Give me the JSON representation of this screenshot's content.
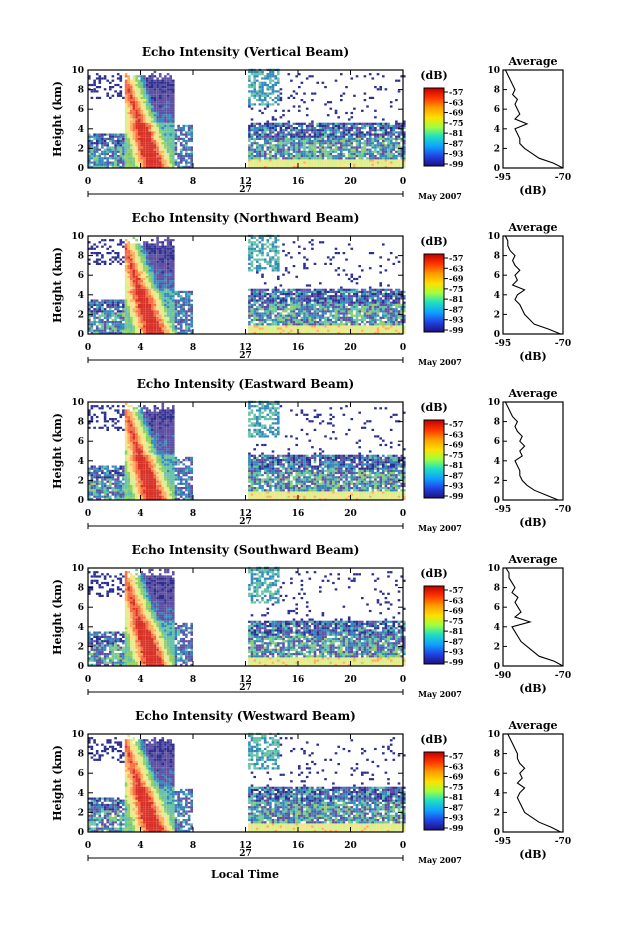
{
  "chart_data": [
    {
      "type": "heatmap",
      "title": "Echo Intensity (Vertical Beam)",
      "ylabel": "Height (km)",
      "ylim": [
        0,
        10
      ],
      "yticks": [
        "0",
        "2",
        "4",
        "6",
        "8",
        "10"
      ],
      "xlim": [
        0,
        24
      ],
      "xticks": [
        "0",
        "4",
        "8",
        "12",
        "16",
        "20",
        "0"
      ],
      "date_label": "27",
      "month_label": "May 2007",
      "gap": [
        8,
        12
      ],
      "colorbar": {
        "unit": "(dB)",
        "labels": [
          "-57",
          "-63",
          "-69",
          "-75",
          "-81",
          "-87",
          "-93",
          "-99"
        ]
      },
      "profile": {
        "title": "Average",
        "xlabel": "(dB)",
        "xtick_labels": [
          "-95",
          "-70"
        ],
        "xlim": [
          -95,
          -70
        ],
        "yticks": [
          "0",
          "2",
          "4",
          "6",
          "8",
          "10"
        ],
        "values": [
          [
            -70,
            0
          ],
          [
            -74,
            0.5
          ],
          [
            -80,
            1
          ],
          [
            -83,
            1.5
          ],
          [
            -86,
            2
          ],
          [
            -88,
            2.5
          ],
          [
            -88,
            3
          ],
          [
            -89,
            3.5
          ],
          [
            -90,
            4
          ],
          [
            -85,
            4.5
          ],
          [
            -90,
            5
          ],
          [
            -88,
            5.5
          ],
          [
            -89,
            6
          ],
          [
            -90,
            6.5
          ],
          [
            -89,
            7
          ],
          [
            -91,
            7.5
          ],
          [
            -90,
            8
          ],
          [
            -91,
            8.5
          ],
          [
            -92,
            9
          ],
          [
            -93,
            9.5
          ],
          [
            -94,
            10
          ]
        ]
      }
    },
    {
      "type": "heatmap",
      "title": "Echo Intensity (Northward Beam)",
      "ylabel": "Height (km)",
      "ylim": [
        0,
        10
      ],
      "yticks": [
        "0",
        "2",
        "4",
        "6",
        "8",
        "10"
      ],
      "xlim": [
        0,
        24
      ],
      "xticks": [
        "0",
        "4",
        "8",
        "12",
        "16",
        "20",
        "0"
      ],
      "date_label": "27",
      "month_label": "May 2007",
      "gap": [
        8,
        12
      ],
      "colorbar": {
        "unit": "(dB)",
        "labels": [
          "-57",
          "-63",
          "-69",
          "-75",
          "-81",
          "-87",
          "-93",
          "-99"
        ]
      },
      "profile": {
        "title": "Average",
        "xlabel": "(dB)",
        "xtick_labels": [
          "-95",
          "-70"
        ],
        "xlim": [
          -95,
          -70
        ],
        "yticks": [
          "0",
          "2",
          "4",
          "6",
          "8",
          "10"
        ],
        "values": [
          [
            -71,
            0
          ],
          [
            -76,
            0.5
          ],
          [
            -82,
            1
          ],
          [
            -84,
            1.5
          ],
          [
            -86,
            2
          ],
          [
            -87,
            2.5
          ],
          [
            -88,
            3
          ],
          [
            -90,
            3.5
          ],
          [
            -89,
            4
          ],
          [
            -86,
            4.5
          ],
          [
            -91,
            5
          ],
          [
            -89,
            5.5
          ],
          [
            -90,
            6
          ],
          [
            -88,
            6.5
          ],
          [
            -90,
            7
          ],
          [
            -91,
            7.5
          ],
          [
            -90,
            8
          ],
          [
            -92,
            8.5
          ],
          [
            -93,
            9
          ],
          [
            -93,
            9.5
          ],
          [
            -94,
            10
          ]
        ]
      }
    },
    {
      "type": "heatmap",
      "title": "Echo Intensity (Eastward Beam)",
      "ylabel": "Height (km)",
      "ylim": [
        0,
        10
      ],
      "yticks": [
        "0",
        "2",
        "4",
        "6",
        "8",
        "10"
      ],
      "xlim": [
        0,
        24
      ],
      "xticks": [
        "0",
        "4",
        "8",
        "12",
        "16",
        "20",
        "0"
      ],
      "date_label": "27",
      "month_label": "May 2007",
      "gap": [
        8,
        12
      ],
      "colorbar": {
        "unit": "(dB)",
        "labels": [
          "-57",
          "-63",
          "-69",
          "-75",
          "-81",
          "-87",
          "-93",
          "-99"
        ]
      },
      "profile": {
        "title": "Average",
        "xlabel": "(dB)",
        "xtick_labels": [
          "-95",
          "-70"
        ],
        "xlim": [
          -95,
          -70
        ],
        "yticks": [
          "0",
          "2",
          "4",
          "6",
          "8",
          "10"
        ],
        "values": [
          [
            -72,
            0
          ],
          [
            -77,
            0.5
          ],
          [
            -82,
            1
          ],
          [
            -85,
            1.5
          ],
          [
            -87,
            2
          ],
          [
            -88,
            2.5
          ],
          [
            -88,
            3
          ],
          [
            -89,
            3.5
          ],
          [
            -90,
            4
          ],
          [
            -87,
            4.5
          ],
          [
            -88,
            5
          ],
          [
            -86,
            5.5
          ],
          [
            -88,
            6
          ],
          [
            -87,
            6.5
          ],
          [
            -89,
            7
          ],
          [
            -90,
            7.5
          ],
          [
            -89,
            8
          ],
          [
            -91,
            8.5
          ],
          [
            -92,
            9
          ],
          [
            -93,
            9.5
          ],
          [
            -94,
            10
          ]
        ]
      }
    },
    {
      "type": "heatmap",
      "title": "Echo Intensity (Southward Beam)",
      "ylabel": "Height (km)",
      "ylim": [
        0,
        10
      ],
      "yticks": [
        "0",
        "2",
        "4",
        "6",
        "8",
        "10"
      ],
      "xlim": [
        0,
        24
      ],
      "xticks": [
        "0",
        "4",
        "8",
        "12",
        "16",
        "20",
        "0"
      ],
      "date_label": "27",
      "month_label": "May 2007",
      "gap": [
        8,
        12
      ],
      "colorbar": {
        "unit": "(dB)",
        "labels": [
          "-57",
          "-63",
          "-69",
          "-75",
          "-81",
          "-87",
          "-93",
          "-99"
        ]
      },
      "profile": {
        "title": "Average",
        "xlabel": "(dB)",
        "xtick_labels": [
          "-90",
          "-70"
        ],
        "xlim": [
          -90,
          -70
        ],
        "yticks": [
          "0",
          "2",
          "4",
          "6",
          "8",
          "10"
        ],
        "values": [
          [
            -70,
            0
          ],
          [
            -73,
            0.5
          ],
          [
            -78,
            1
          ],
          [
            -80,
            1.5
          ],
          [
            -82,
            2
          ],
          [
            -84,
            2.5
          ],
          [
            -85,
            3
          ],
          [
            -86,
            3.5
          ],
          [
            -87,
            4
          ],
          [
            -81,
            4.5
          ],
          [
            -86,
            5
          ],
          [
            -84,
            5.5
          ],
          [
            -85,
            6
          ],
          [
            -86,
            6.5
          ],
          [
            -85,
            7
          ],
          [
            -87,
            7.5
          ],
          [
            -86,
            8
          ],
          [
            -87,
            8.5
          ],
          [
            -88,
            9
          ],
          [
            -88,
            9.5
          ],
          [
            -89,
            10
          ]
        ]
      }
    },
    {
      "type": "heatmap",
      "title": "Echo Intensity (Westward Beam)",
      "ylabel": "Height (km)",
      "ylim": [
        0,
        10
      ],
      "yticks": [
        "0",
        "2",
        "4",
        "6",
        "8",
        "10"
      ],
      "xlim": [
        0,
        24
      ],
      "xticks": [
        "0",
        "4",
        "8",
        "12",
        "16",
        "20",
        "0"
      ],
      "date_label": "27",
      "month_label": "May 2007",
      "gap": [
        8,
        12
      ],
      "colorbar": {
        "unit": "(dB)",
        "labels": [
          "-57",
          "-63",
          "-69",
          "-75",
          "-81",
          "-87",
          "-93",
          "-99"
        ]
      },
      "profile": {
        "title": "Average",
        "xlabel": "(dB)",
        "xtick_labels": [
          "-95",
          "-70"
        ],
        "xlim": [
          -95,
          -70
        ],
        "yticks": [
          "0",
          "2",
          "4",
          "6",
          "8",
          "10"
        ],
        "values": [
          [
            -71,
            0
          ],
          [
            -75,
            0.5
          ],
          [
            -80,
            1
          ],
          [
            -83,
            1.5
          ],
          [
            -86,
            2
          ],
          [
            -87,
            2.5
          ],
          [
            -88,
            3
          ],
          [
            -89,
            3.5
          ],
          [
            -88,
            4
          ],
          [
            -86,
            4.5
          ],
          [
            -89,
            5
          ],
          [
            -87,
            5.5
          ],
          [
            -88,
            6
          ],
          [
            -86,
            6.5
          ],
          [
            -88,
            7
          ],
          [
            -89,
            7.5
          ],
          [
            -89,
            8
          ],
          [
            -90,
            8.5
          ],
          [
            -91,
            9
          ],
          [
            -92,
            9.5
          ],
          [
            -93,
            10
          ]
        ]
      }
    }
  ],
  "xlabel_bottom": "Local Time",
  "colorscale": [
    "#d73027",
    "#f46d43",
    "#fdae61",
    "#fee08b",
    "#d9ef8b",
    "#91cf60",
    "#66c2a5",
    "#3288bd",
    "#5e4fa2",
    "#2b2f8f"
  ]
}
